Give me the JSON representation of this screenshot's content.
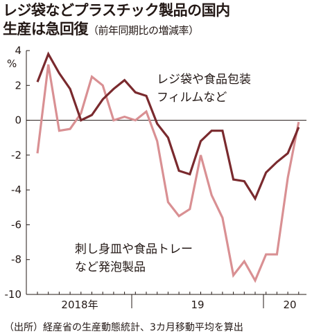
{
  "title": {
    "line1": "レジ袋などプラスチック製品の国内",
    "line2": "生産は急回復",
    "subtitle": "（前年同期比の増減率）"
  },
  "source": "（出所）経産省の生産動態統計、3カ月移動平均を算出",
  "colors": {
    "dark": "#7a2a2e",
    "light": "#d99093",
    "axis": "#231815"
  },
  "chart_data": {
    "type": "line",
    "ylabel": "%",
    "ylim": [
      -10,
      4
    ],
    "y_ticks": [
      "4",
      "2",
      "0",
      "-2",
      "-4",
      "-6",
      "-8",
      "-10"
    ],
    "x_labels": [
      "2018年",
      "19",
      "20"
    ],
    "grid": false,
    "series": [
      {
        "name": "レジ袋や食品包装\nフィルムなど",
        "label_line1": "レジ袋や食品包装",
        "label_line2": "フィルムなど",
        "color": "#7a2a2e",
        "values": [
          2.2,
          3.8,
          2.7,
          1.8,
          0.0,
          0.3,
          1.2,
          1.8,
          2.3,
          1.6,
          1.4,
          -0.2,
          -1.0,
          -2.9,
          -3.1,
          -1.2,
          -0.6,
          -0.6,
          -3.4,
          -3.5,
          -4.5,
          -3.0,
          -2.4,
          -1.9,
          -0.4
        ]
      },
      {
        "name": "刺し身皿や食品トレー\nなど発泡製品",
        "label_line1": "刺し身皿や食品トレー",
        "label_line2": "など発泡製品",
        "color": "#d99093",
        "values": [
          -1.9,
          3.2,
          -0.6,
          -0.5,
          0.4,
          2.5,
          2.0,
          0.0,
          0.2,
          0.0,
          0.5,
          -1.2,
          -4.7,
          -5.5,
          -5.1,
          -2.0,
          -4.3,
          -5.6,
          -8.9,
          -8.1,
          -9.2,
          -7.7,
          -7.7,
          -3.3,
          -0.1
        ]
      }
    ]
  }
}
